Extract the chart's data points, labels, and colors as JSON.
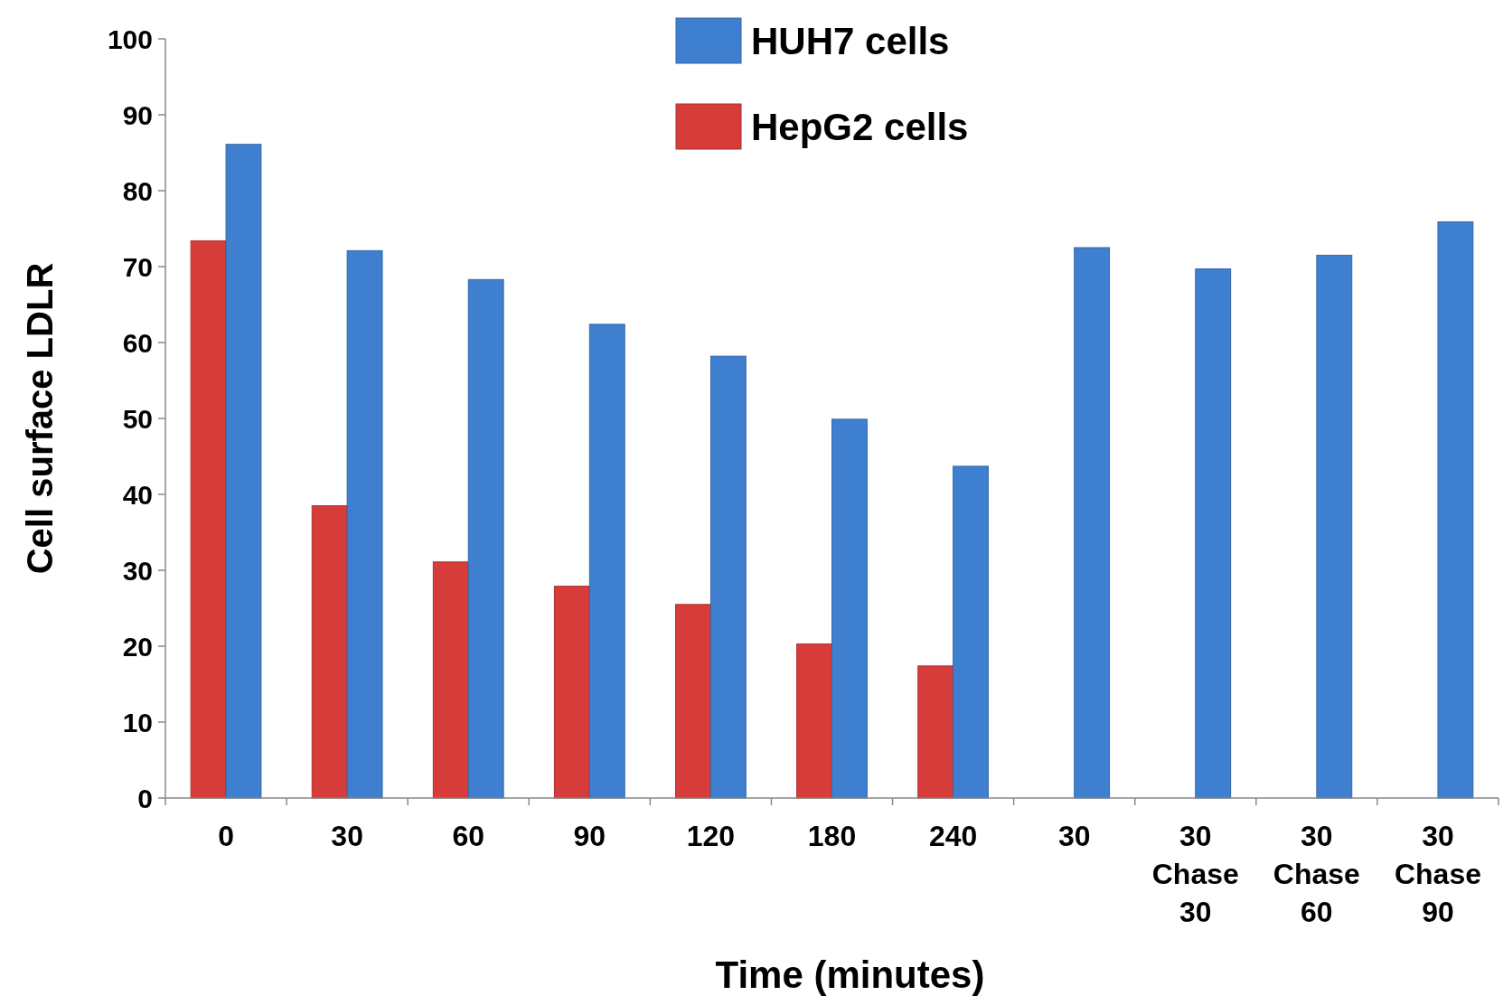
{
  "chart_data": {
    "type": "bar",
    "xlabel": "Time (minutes)",
    "ylabel": "Cell surface LDLR",
    "categories": [
      "0",
      "30",
      "60",
      "90",
      "120",
      "180",
      "240",
      "30",
      "30\nChase\n30",
      "30\nChase\n60",
      "30\nChase\n90"
    ],
    "series": [
      {
        "name": "HepG2 cells",
        "color": "#d63c3a",
        "values": [
          73.4,
          38.5,
          31.1,
          27.9,
          25.5,
          20.3,
          17.4,
          null,
          null,
          null,
          null
        ]
      },
      {
        "name": "HUH7 cells",
        "color": "#3f7fcf",
        "values": [
          86.1,
          72.1,
          68.3,
          62.4,
          58.2,
          49.9,
          43.7,
          72.5,
          69.7,
          71.5,
          75.9
        ]
      }
    ],
    "ylim": [
      0,
      100
    ],
    "yticks": [
      0,
      10,
      20,
      30,
      40,
      50,
      60,
      70,
      80,
      90,
      100
    ],
    "grid": false,
    "legend": "top"
  }
}
